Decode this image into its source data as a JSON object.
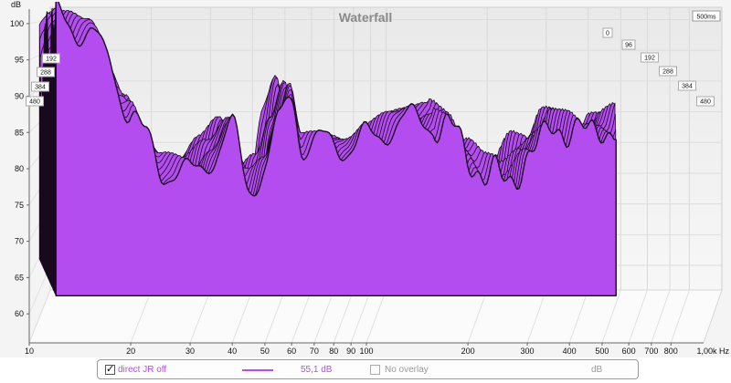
{
  "chart_data": {
    "type": "area",
    "title": "Waterfall",
    "ylabel": "dB",
    "xlabel": "Hz",
    "x_scale": "log",
    "xlim": [
      10,
      1000
    ],
    "ylim": [
      56,
      102
    ],
    "x_ticks": [
      10,
      20,
      30,
      40,
      50,
      60,
      70,
      80,
      90,
      100,
      200,
      300,
      400,
      500,
      600,
      700,
      800
    ],
    "x_tick_labels": [
      "10",
      "20",
      "30",
      "40",
      "50",
      "60",
      "70",
      "80",
      "90",
      "100",
      "200",
      "300",
      "400",
      "500",
      "600",
      "700",
      "800"
    ],
    "x_end_label": "1,00k Hz",
    "y_ticks": [
      60,
      65,
      70,
      75,
      80,
      85,
      90,
      95,
      100
    ],
    "y_tick_labels": [
      "60",
      "65",
      "70",
      "75",
      "80",
      "85",
      "90",
      "95",
      "100"
    ],
    "time_label": "500ms",
    "time_ticks_right": [
      "0",
      "96",
      "192",
      "288",
      "384",
      "480"
    ],
    "time_ticks_left": [
      "192",
      "288",
      "384",
      "480"
    ],
    "fill_color": "#b44df0",
    "line_color": "#1a0a1f",
    "grid": true,
    "series": [
      {
        "x": [
          12,
          13,
          15,
          17,
          20,
          22,
          25,
          30,
          35,
          40,
          45,
          50,
          55,
          60,
          65,
          70,
          80,
          90,
          100,
          120,
          150,
          180,
          200,
          230,
          260,
          300,
          330,
          360,
          400,
          430,
          460,
          500,
          550
        ],
        "values": [
          101,
          100,
          99,
          95,
          88,
          84,
          80,
          79,
          82,
          85,
          78,
          80,
          86,
          91,
          83,
          83,
          84,
          83,
          84,
          86,
          87,
          85,
          82,
          79,
          78,
          82,
          83,
          86,
          86,
          85,
          84,
          86,
          86
        ]
      }
    ]
  },
  "legend": {
    "series_checked_label": "direct JR off",
    "series_value": "55,1 dB",
    "overlay_label": "No overlay",
    "overlay_unit": "dB"
  }
}
